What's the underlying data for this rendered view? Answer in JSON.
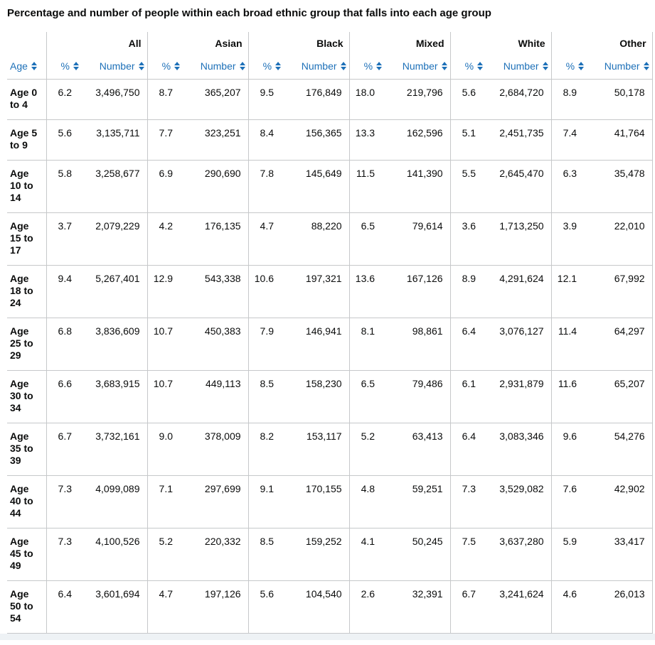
{
  "title": "Percentage and number of people within each broad ethnic group that falls into each age group",
  "colors": {
    "link_blue": "#1d70b8",
    "text": "#0b0c0c",
    "border": "#c6c8ca",
    "footer_strip": "#eef2f5"
  },
  "table": {
    "age_header_label": "Age",
    "percent_header_label": "%",
    "number_header_label": "Number",
    "sort_icon": "up-down-arrows",
    "groups": [
      "All",
      "Asian",
      "Black",
      "Mixed",
      "White",
      "Other"
    ],
    "rows": [
      {
        "age": "Age 0 to 4",
        "cells": [
          "6.2",
          "3,496,750",
          "8.7",
          "365,207",
          "9.5",
          "176,849",
          "18.0",
          "219,796",
          "5.6",
          "2,684,720",
          "8.9",
          "50,178"
        ]
      },
      {
        "age": "Age 5 to 9",
        "cells": [
          "5.6",
          "3,135,711",
          "7.7",
          "323,251",
          "8.4",
          "156,365",
          "13.3",
          "162,596",
          "5.1",
          "2,451,735",
          "7.4",
          "41,764"
        ]
      },
      {
        "age": "Age 10 to 14",
        "cells": [
          "5.8",
          "3,258,677",
          "6.9",
          "290,690",
          "7.8",
          "145,649",
          "11.5",
          "141,390",
          "5.5",
          "2,645,470",
          "6.3",
          "35,478"
        ]
      },
      {
        "age": "Age 15 to 17",
        "cells": [
          "3.7",
          "2,079,229",
          "4.2",
          "176,135",
          "4.7",
          "88,220",
          "6.5",
          "79,614",
          "3.6",
          "1,713,250",
          "3.9",
          "22,010"
        ]
      },
      {
        "age": "Age 18 to 24",
        "cells": [
          "9.4",
          "5,267,401",
          "12.9",
          "543,338",
          "10.6",
          "197,321",
          "13.6",
          "167,126",
          "8.9",
          "4,291,624",
          "12.1",
          "67,992"
        ]
      },
      {
        "age": "Age 25 to 29",
        "cells": [
          "6.8",
          "3,836,609",
          "10.7",
          "450,383",
          "7.9",
          "146,941",
          "8.1",
          "98,861",
          "6.4",
          "3,076,127",
          "11.4",
          "64,297"
        ]
      },
      {
        "age": "Age 30 to 34",
        "cells": [
          "6.6",
          "3,683,915",
          "10.7",
          "449,113",
          "8.5",
          "158,230",
          "6.5",
          "79,486",
          "6.1",
          "2,931,879",
          "11.6",
          "65,207"
        ]
      },
      {
        "age": "Age 35 to 39",
        "cells": [
          "6.7",
          "3,732,161",
          "9.0",
          "378,009",
          "8.2",
          "153,117",
          "5.2",
          "63,413",
          "6.4",
          "3,083,346",
          "9.6",
          "54,276"
        ]
      },
      {
        "age": "Age 40 to 44",
        "cells": [
          "7.3",
          "4,099,089",
          "7.1",
          "297,699",
          "9.1",
          "170,155",
          "4.8",
          "59,251",
          "7.3",
          "3,529,082",
          "7.6",
          "42,902"
        ]
      },
      {
        "age": "Age 45 to 49",
        "cells": [
          "7.3",
          "4,100,526",
          "5.2",
          "220,332",
          "8.5",
          "159,252",
          "4.1",
          "50,245",
          "7.5",
          "3,637,280",
          "5.9",
          "33,417"
        ]
      },
      {
        "age": "Age 50 to 54",
        "cells": [
          "6.4",
          "3,601,694",
          "4.7",
          "197,126",
          "5.6",
          "104,540",
          "2.6",
          "32,391",
          "6.7",
          "3,241,624",
          "4.6",
          "26,013"
        ]
      }
    ]
  }
}
